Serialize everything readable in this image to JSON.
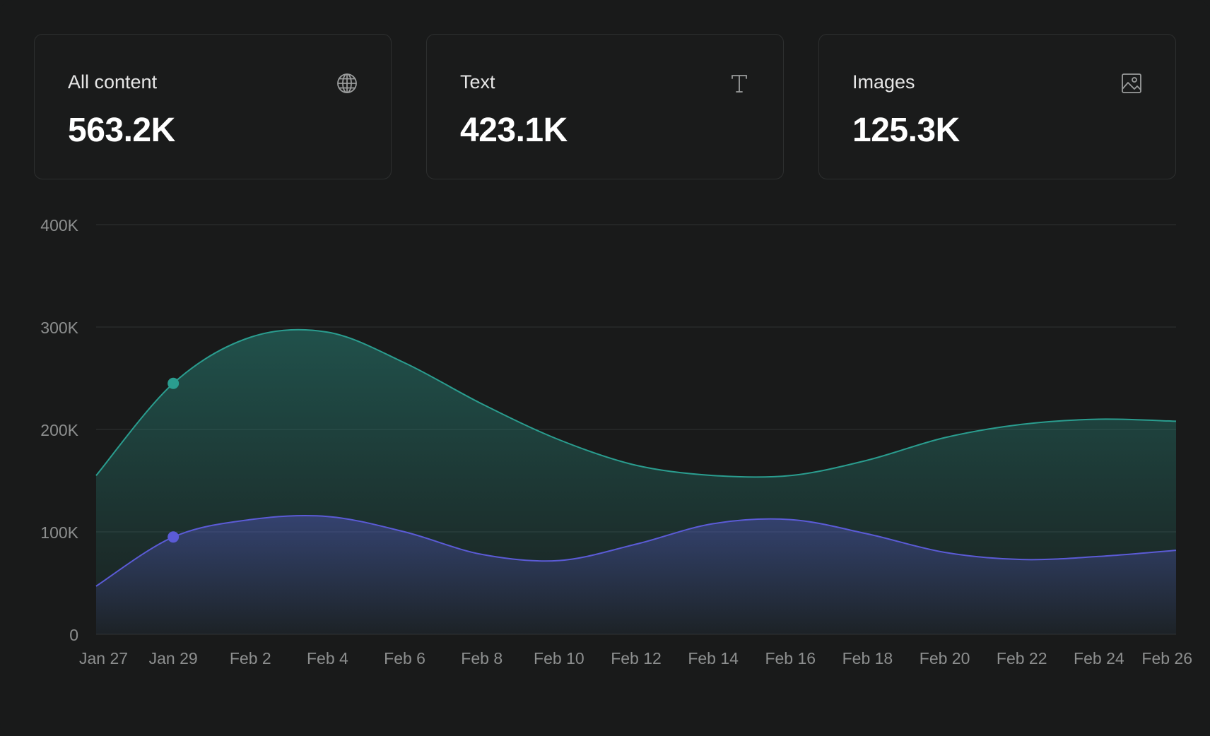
{
  "cards": [
    {
      "label": "All content",
      "value": "563.2K",
      "icon": "globe-icon"
    },
    {
      "label": "Text",
      "value": "423.1K",
      "icon": "text-icon"
    },
    {
      "label": "Images",
      "value": "125.3K",
      "icon": "image-icon"
    }
  ],
  "chart_data": {
    "type": "area",
    "title": "",
    "xlabel": "",
    "ylabel": "",
    "ylim": [
      0,
      400000
    ],
    "yticks": [
      {
        "value": 0,
        "label": "0"
      },
      {
        "value": 100000,
        "label": "100K"
      },
      {
        "value": 200000,
        "label": "200K"
      },
      {
        "value": 300000,
        "label": "300K"
      },
      {
        "value": 400000,
        "label": "400K"
      }
    ],
    "categories": [
      "Jan 27",
      "Jan 29",
      "Feb 2",
      "Feb 4",
      "Feb 6",
      "Feb 8",
      "Feb 10",
      "Feb 12",
      "Feb 14",
      "Feb 16",
      "Feb 18",
      "Feb 20",
      "Feb 22",
      "Feb 24",
      "Feb 26"
    ],
    "grid": true,
    "highlight_index": 1,
    "series": [
      {
        "name": "Text",
        "color": "#2a9d8f",
        "values": [
          155000,
          245000,
          290000,
          295000,
          265000,
          225000,
          190000,
          165000,
          155000,
          155000,
          170000,
          192000,
          205000,
          210000,
          208000
        ]
      },
      {
        "name": "Images",
        "color": "#5b5bd6",
        "values": [
          47000,
          95000,
          112000,
          115000,
          100000,
          78000,
          72000,
          88000,
          108000,
          112000,
          98000,
          80000,
          73000,
          76000,
          82000
        ]
      }
    ]
  }
}
